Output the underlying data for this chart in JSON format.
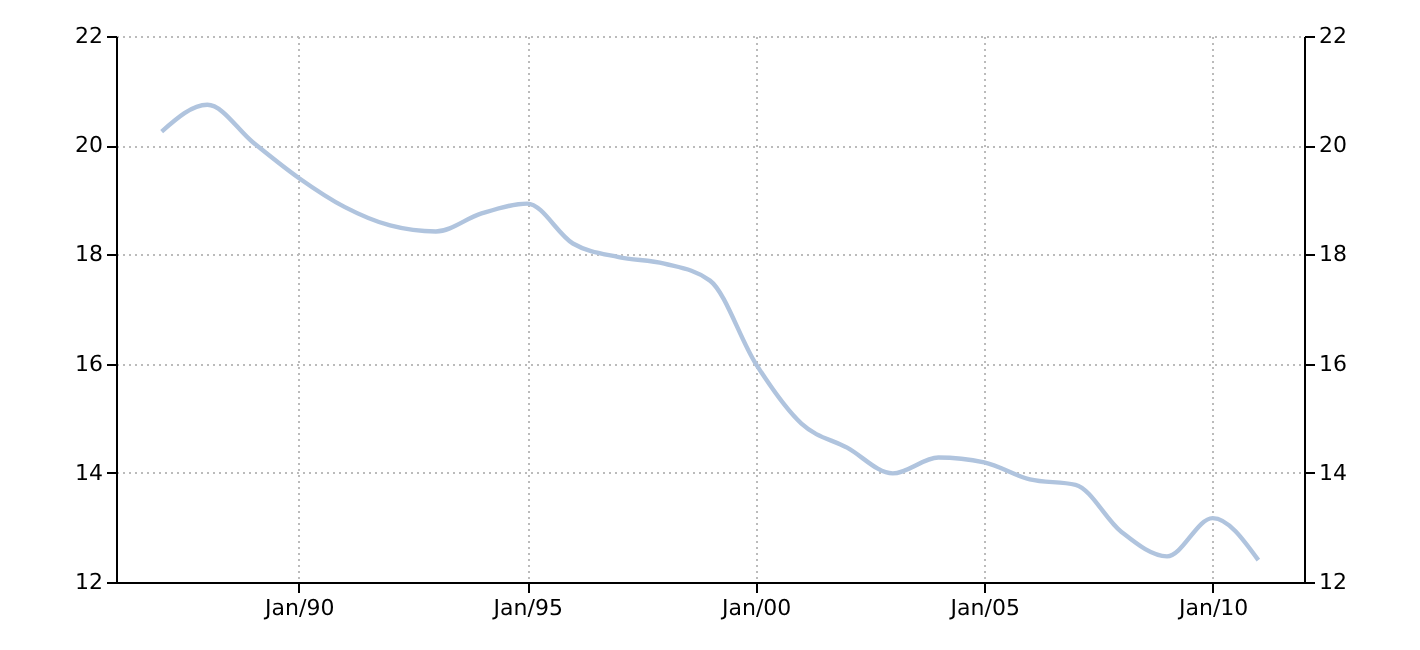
{
  "chart_data": {
    "type": "line",
    "x": [
      "1987",
      "1988",
      "1989",
      "1990",
      "1991",
      "1992",
      "1993",
      "1994",
      "1995",
      "1996",
      "1997",
      "1998",
      "1999",
      "2000",
      "2001",
      "2002",
      "2003",
      "2004",
      "2005",
      "2006",
      "2007",
      "2008",
      "2009",
      "2010",
      "2011"
    ],
    "series": [
      {
        "color": "#b0c4de",
        "values": [
          20.25,
          20.74,
          20.05,
          19.4,
          18.87,
          18.53,
          18.42,
          18.75,
          18.93,
          18.2,
          17.95,
          17.83,
          17.52,
          16.0,
          14.9,
          14.46,
          13.99,
          14.28,
          14.19,
          13.88,
          13.78,
          12.92,
          12.47,
          13.17,
          12.4
        ]
      }
    ],
    "xlim": [
      "1986-01",
      "2012-01"
    ],
    "xticks": [
      {
        "value": "1990-01",
        "label": "Jan/90"
      },
      {
        "value": "1995-01",
        "label": "Jan/95"
      },
      {
        "value": "2000-01",
        "label": "Jan/00"
      },
      {
        "value": "2005-01",
        "label": "Jan/05"
      },
      {
        "value": "2010-01",
        "label": "Jan/10"
      }
    ],
    "ylim": [
      12,
      22
    ],
    "yticks": [
      12,
      14,
      16,
      18,
      20,
      22
    ],
    "y2lim": [
      12,
      22
    ],
    "y2ticks": [
      12,
      14,
      16,
      18,
      20,
      22
    ],
    "grid": true,
    "line_style": "solid"
  }
}
